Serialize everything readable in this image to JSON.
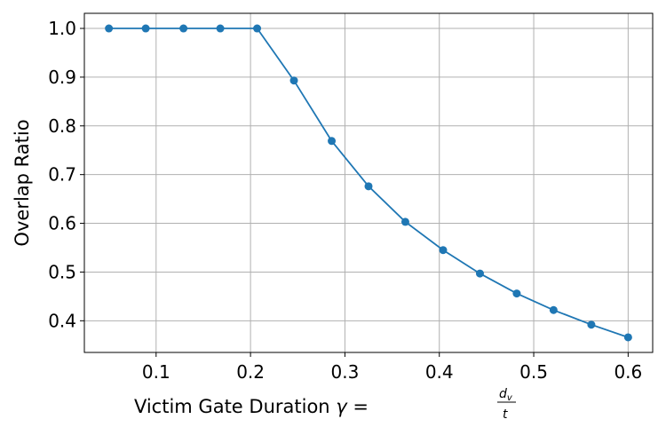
{
  "chart_data": {
    "type": "line",
    "title": "",
    "xlabel_prefix": "Victim Gate Duration ",
    "xlabel_symbol": "γ",
    "xlabel_eq": " = ",
    "xlabel_numerator": "d",
    "xlabel_numerator_sub": "v",
    "xlabel_denominator": "t",
    "ylabel": "Overlap Ratio",
    "xlim": [
      0.024,
      0.626
    ],
    "ylim": [
      0.335,
      1.031
    ],
    "xticks": [
      "0.1",
      "0.2",
      "0.3",
      "0.4",
      "0.5",
      "0.6"
    ],
    "yticks": [
      "0.4",
      "0.5",
      "0.6",
      "0.7",
      "0.8",
      "0.9",
      "1.0"
    ],
    "grid": true,
    "color": "#1f77b4",
    "series": [
      {
        "x": [
          0.05,
          0.089,
          0.129,
          0.168,
          0.207,
          0.246,
          0.286,
          0.325,
          0.364,
          0.404,
          0.443,
          0.482,
          0.521,
          0.561,
          0.6
        ],
        "y": [
          1.0,
          1.0,
          1.0,
          1.0,
          1.0,
          0.893,
          0.769,
          0.676,
          0.603,
          0.545,
          0.497,
          0.456,
          0.422,
          0.392,
          0.366
        ]
      }
    ]
  }
}
